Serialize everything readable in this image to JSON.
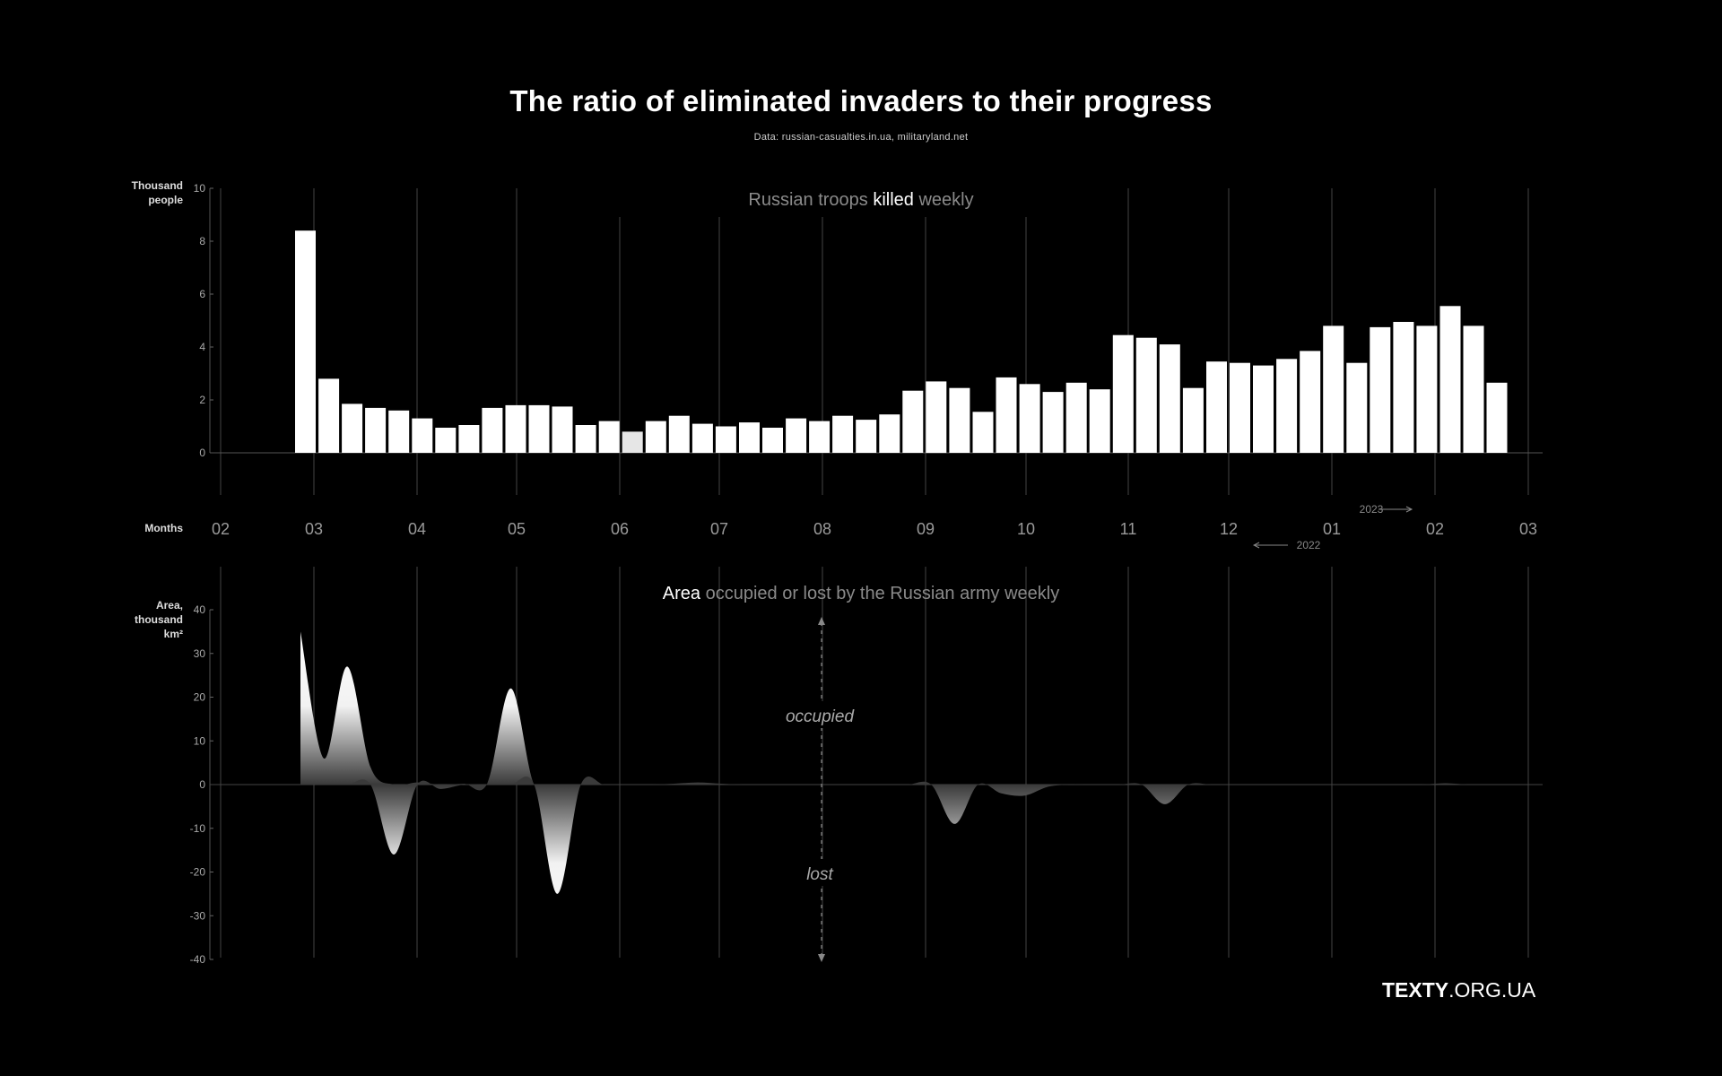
{
  "title": "The ratio of eliminated invaders to their progress",
  "source": "Data: russian-casualties.in.ua, militaryland.net",
  "brand": {
    "bold": "TEXTY",
    "rest": ".ORG.UA"
  },
  "colors": {
    "background": "#000000",
    "bar": "#ffffff",
    "grid": "#444444",
    "muted": "#8a8a8a"
  },
  "chart_data": [
    {
      "type": "bar",
      "title_parts": [
        "Russian troops ",
        "killed",
        " weekly"
      ],
      "ylabel": [
        "Thousand",
        "people"
      ],
      "ylim": [
        0,
        10
      ],
      "yticks": [
        "10",
        "8",
        "6",
        "4",
        "2",
        "0"
      ],
      "x_axis_label": "Months",
      "months": [
        "02",
        "03",
        "04",
        "05",
        "06",
        "07",
        "08",
        "09",
        "10",
        "11",
        "12",
        "01",
        "02",
        "03"
      ],
      "year_markers": [
        "2023",
        "2022"
      ],
      "values": [
        8.4,
        2.8,
        1.85,
        1.7,
        1.6,
        1.3,
        0.95,
        1.05,
        1.7,
        1.8,
        1.8,
        1.75,
        1.05,
        1.2,
        0.8,
        1.2,
        1.4,
        1.1,
        1.0,
        1.15,
        0.95,
        1.3,
        1.2,
        1.4,
        1.25,
        1.45,
        2.35,
        2.7,
        2.45,
        1.55,
        2.85,
        2.6,
        2.3,
        2.65,
        2.4,
        4.45,
        4.35,
        4.1,
        2.45,
        3.45,
        3.4,
        3.3,
        3.55,
        3.85,
        4.8,
        3.4,
        4.75,
        4.95,
        4.8,
        5.55,
        4.8,
        2.65
      ]
    },
    {
      "type": "area",
      "title_parts": [
        "Area",
        " occupied or lost by the Russian army weekly"
      ],
      "ylabel": [
        "Area,",
        "thousand",
        "km²"
      ],
      "ylim": [
        -40,
        40
      ],
      "yticks": [
        "40",
        "30",
        "20",
        "10",
        "0",
        "-10",
        "-20",
        "-30",
        "-40"
      ],
      "annotations": {
        "up": "occupied",
        "down": "lost"
      },
      "values": [
        35,
        6,
        27,
        4,
        -16,
        0.5,
        -1,
        0.2,
        0.3,
        22,
        0,
        -25,
        0,
        0,
        0,
        0,
        0.2,
        0.5,
        0.2,
        0,
        0,
        0,
        0,
        0,
        0,
        0,
        0,
        0,
        -9,
        0,
        -2,
        -2.5,
        -0.5,
        0,
        0,
        0,
        0,
        -4.5,
        0,
        0,
        0,
        0,
        0,
        0,
        0,
        0,
        0,
        0,
        0,
        0.3,
        0,
        0
      ]
    }
  ]
}
